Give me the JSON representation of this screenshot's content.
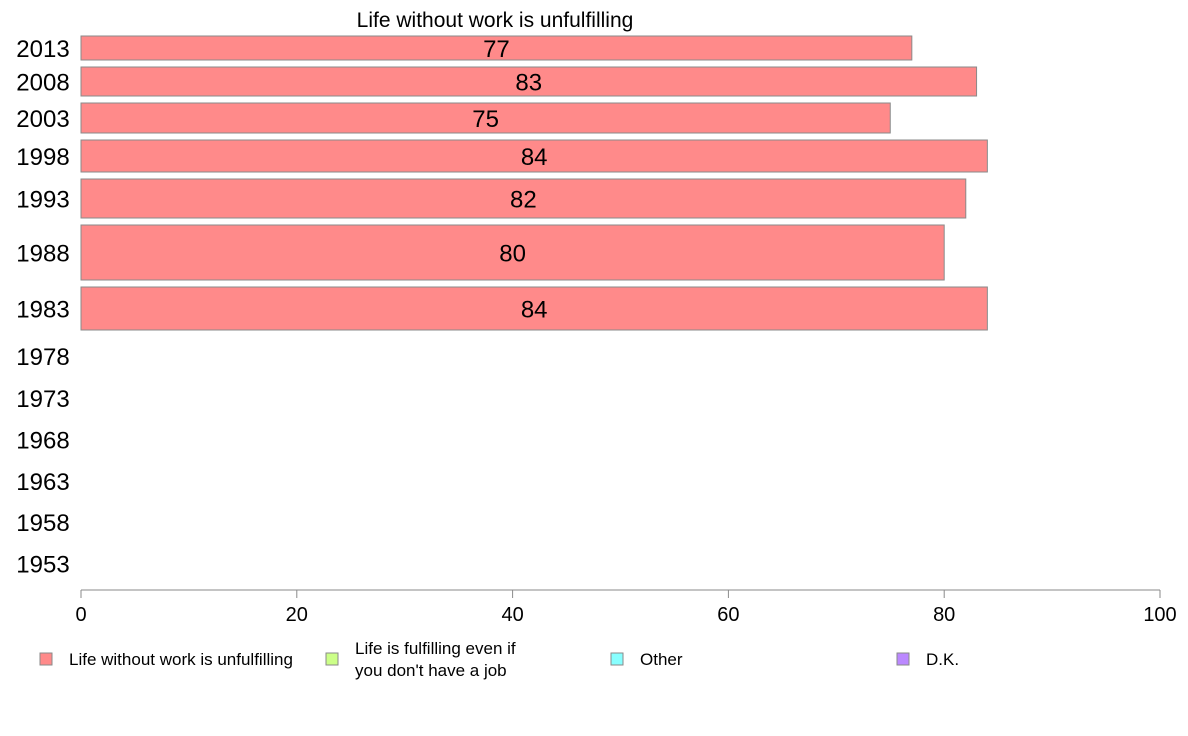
{
  "chart_data": {
    "type": "bar",
    "orientation": "horizontal",
    "title": "Life without work is unfulfilling",
    "categories": [
      "2013",
      "2008",
      "2003",
      "1998",
      "1993",
      "1988",
      "1983",
      "1978",
      "1973",
      "1968",
      "1963",
      "1958",
      "1953"
    ],
    "series": [
      {
        "name": "Life without work is unfulfilling",
        "color": "#ff8a8a",
        "values": [
          77,
          83,
          75,
          84,
          82,
          80,
          84,
          null,
          null,
          null,
          null,
          null,
          null
        ]
      }
    ],
    "xlim": [
      0,
      100
    ],
    "xticks": [
      "0",
      "20",
      "40",
      "60",
      "80",
      "100"
    ],
    "legend": {
      "position": "bottom",
      "items": [
        {
          "label": "Life without work is unfulfilling",
          "color": "#ff8a8a"
        },
        {
          "label": "Life is fulfilling even if you don't have a job",
          "lines": [
            "Life is fulfilling even if",
            "you don't have a job"
          ],
          "color": "#ccff88"
        },
        {
          "label": "Other",
          "color": "#88ffff"
        },
        {
          "label": "D.K.",
          "color": "#bb88ff"
        }
      ]
    },
    "grid": false
  }
}
